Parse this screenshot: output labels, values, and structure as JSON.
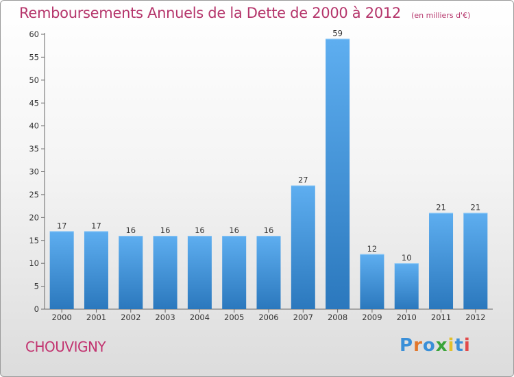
{
  "chart_data": {
    "type": "bar",
    "title": "Remboursements Annuels de la Dette de 2000 à 2012",
    "subtitle": "(en milliers d'€)",
    "categories": [
      "2000",
      "2001",
      "2002",
      "2003",
      "2004",
      "2005",
      "2006",
      "2007",
      "2008",
      "2009",
      "2010",
      "2011",
      "2012"
    ],
    "values": [
      17,
      17,
      16,
      16,
      16,
      16,
      16,
      27,
      59,
      12,
      10,
      21,
      21
    ],
    "ylim": [
      0,
      60
    ],
    "yticks": [
      0,
      5,
      10,
      15,
      20,
      25,
      30,
      35,
      40,
      45,
      50,
      55,
      60
    ],
    "grid": false,
    "bar_color_top": "#5eaef0",
    "bar_color_bottom": "#2b78bd"
  },
  "footer": {
    "place": "CHOUVIGNY",
    "logo": [
      "P",
      "r",
      "o",
      "x",
      "i",
      "t",
      "i"
    ],
    "logo_colors": [
      "#3a8fd8",
      "#e2762b",
      "#3a8fd8",
      "#3aa43a",
      "#e2c02b",
      "#3a8fd8",
      "#e24a4a"
    ]
  }
}
